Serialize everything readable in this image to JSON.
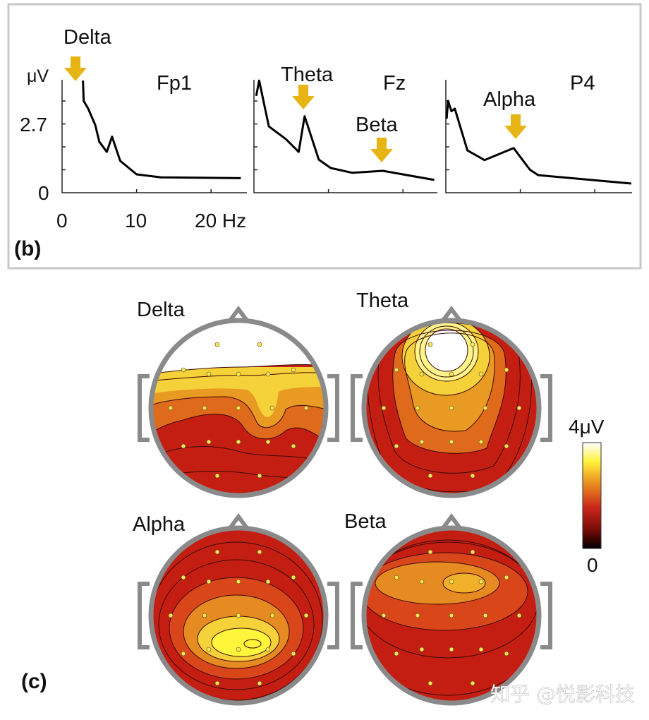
{
  "panel_b": {
    "label": "(b)",
    "y_unit": "μV",
    "y_tick_labels": [
      "0",
      "2.7"
    ],
    "x_tick_labels": [
      "0",
      "10",
      "20 Hz"
    ]
  },
  "panel_c": {
    "label": "(c)",
    "maps": [
      "Delta",
      "Theta",
      "Alpha",
      "Beta"
    ],
    "colorbar": {
      "max_label": "4μV",
      "min_label": "0",
      "range": [
        0,
        4
      ]
    }
  },
  "watermark": "知乎 @悦影科技",
  "colors": {
    "arrow": "#e6b413",
    "head": "#8a8a8a",
    "low": "#c41e12",
    "high": "#ffffff"
  },
  "chart_data": [
    {
      "type": "line",
      "title": "Fp1",
      "xlabel": "Hz",
      "ylabel": "μV",
      "xlim": [
        0,
        25
      ],
      "ylim": [
        0,
        4.5
      ],
      "annotations": [
        {
          "text": "Delta",
          "x": 2
        }
      ],
      "x": [
        2.8,
        2.9,
        3.5,
        4.45,
        5,
        6,
        6.7,
        7.8,
        10,
        13.3,
        24
      ],
      "y": [
        4.4,
        3.6,
        3.3,
        2.66,
        2.0,
        1.6,
        2.2,
        1.25,
        0.72,
        0.6,
        0.57
      ]
    },
    {
      "type": "line",
      "title": "Fz",
      "xlabel": "Hz",
      "ylabel": "μV",
      "xlim": [
        0,
        25
      ],
      "ylim": [
        0,
        4.5
      ],
      "annotations": [
        {
          "text": "Theta",
          "x": 6.7
        },
        {
          "text": "Beta",
          "x": 17
        }
      ],
      "x": [
        0.3,
        0.7,
        2,
        4.3,
        6,
        6.8,
        8.7,
        10.3,
        13.2,
        17.3,
        24.2
      ],
      "y": [
        3.8,
        4.4,
        2.6,
        2.1,
        1.6,
        3.0,
        1.3,
        0.97,
        0.78,
        0.86,
        0.5
      ]
    },
    {
      "type": "line",
      "title": "P4",
      "xlabel": "Hz",
      "ylabel": "μV",
      "xlim": [
        0,
        25
      ],
      "ylim": [
        0,
        4.5
      ],
      "annotations": [
        {
          "text": "Alpha",
          "x": 9.3
        }
      ],
      "x": [
        0.1,
        0.3,
        0.75,
        1.2,
        2.9,
        5.2,
        9.1,
        11.3,
        12.4,
        24.9
      ],
      "y": [
        2.9,
        3.6,
        3.2,
        3.3,
        1.66,
        1.28,
        1.75,
        0.9,
        0.69,
        0.36
      ]
    }
  ]
}
